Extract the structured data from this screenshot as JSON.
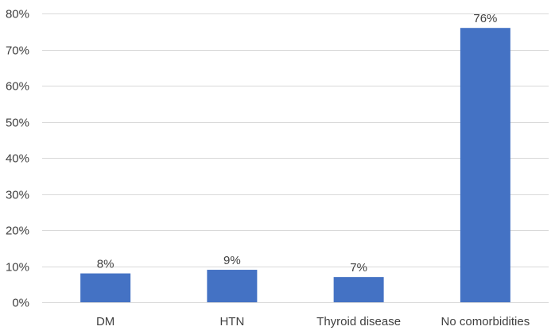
{
  "chart_data": {
    "type": "bar",
    "title": "",
    "xlabel": "",
    "ylabel": "",
    "categories": [
      "DM",
      "HTN",
      "Thyroid disease",
      "No comorbidities"
    ],
    "values": [
      8,
      9,
      7,
      76
    ],
    "data_labels": [
      "8%",
      "9%",
      "7%",
      "76%"
    ],
    "ylim": [
      0,
      80
    ],
    "yticks": [
      0,
      10,
      20,
      30,
      40,
      50,
      60,
      70,
      80
    ],
    "ytick_labels": [
      "0%",
      "10%",
      "20%",
      "30%",
      "40%",
      "50%",
      "60%",
      "70%",
      "80%"
    ],
    "grid": true,
    "legend": "none",
    "bar_color": "#4472C4",
    "grid_color": "#D9D9D9",
    "text_color": "#404040"
  }
}
